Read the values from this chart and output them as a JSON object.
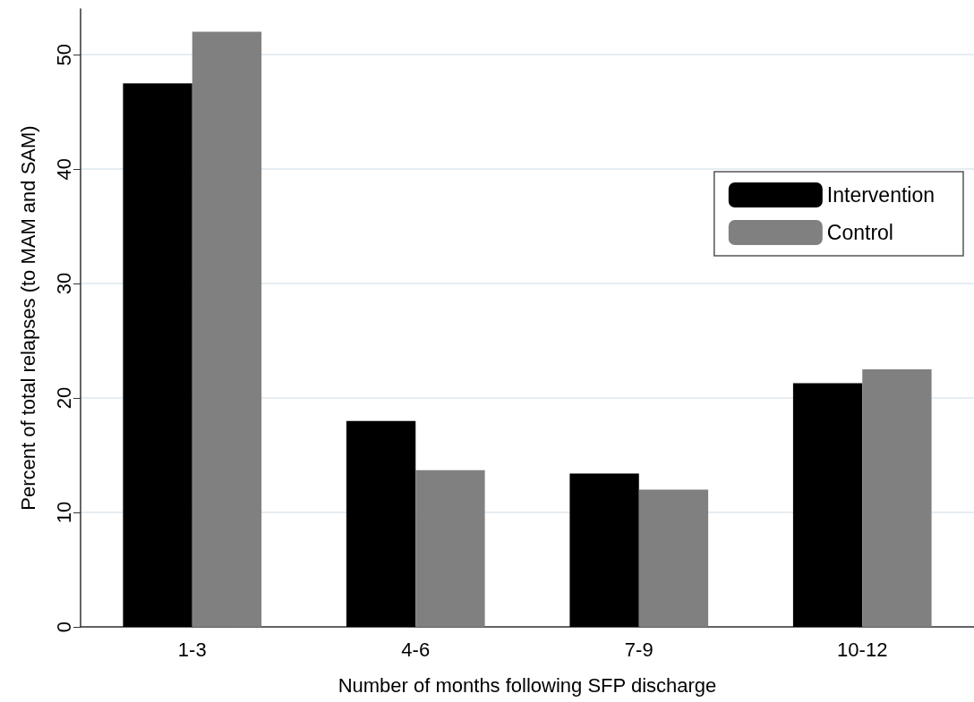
{
  "chart_data": {
    "type": "bar",
    "xlabel": "Number of months following SFP discharge",
    "ylabel": "Percent of total relapses (to MAM and SAM)",
    "categories": [
      "1-3",
      "4-6",
      "7-9",
      "10-12"
    ],
    "series": [
      {
        "name": "Intervention",
        "color": "#000000",
        "values": [
          47.5,
          18.0,
          13.4,
          21.3
        ]
      },
      {
        "name": "Control",
        "color": "#808080",
        "values": [
          52.0,
          13.7,
          12.0,
          22.5
        ]
      }
    ],
    "ylim": [
      0,
      54
    ],
    "yticks": [
      0,
      10,
      20,
      30,
      40,
      50
    ],
    "grid": "y",
    "legend": "top right"
  }
}
